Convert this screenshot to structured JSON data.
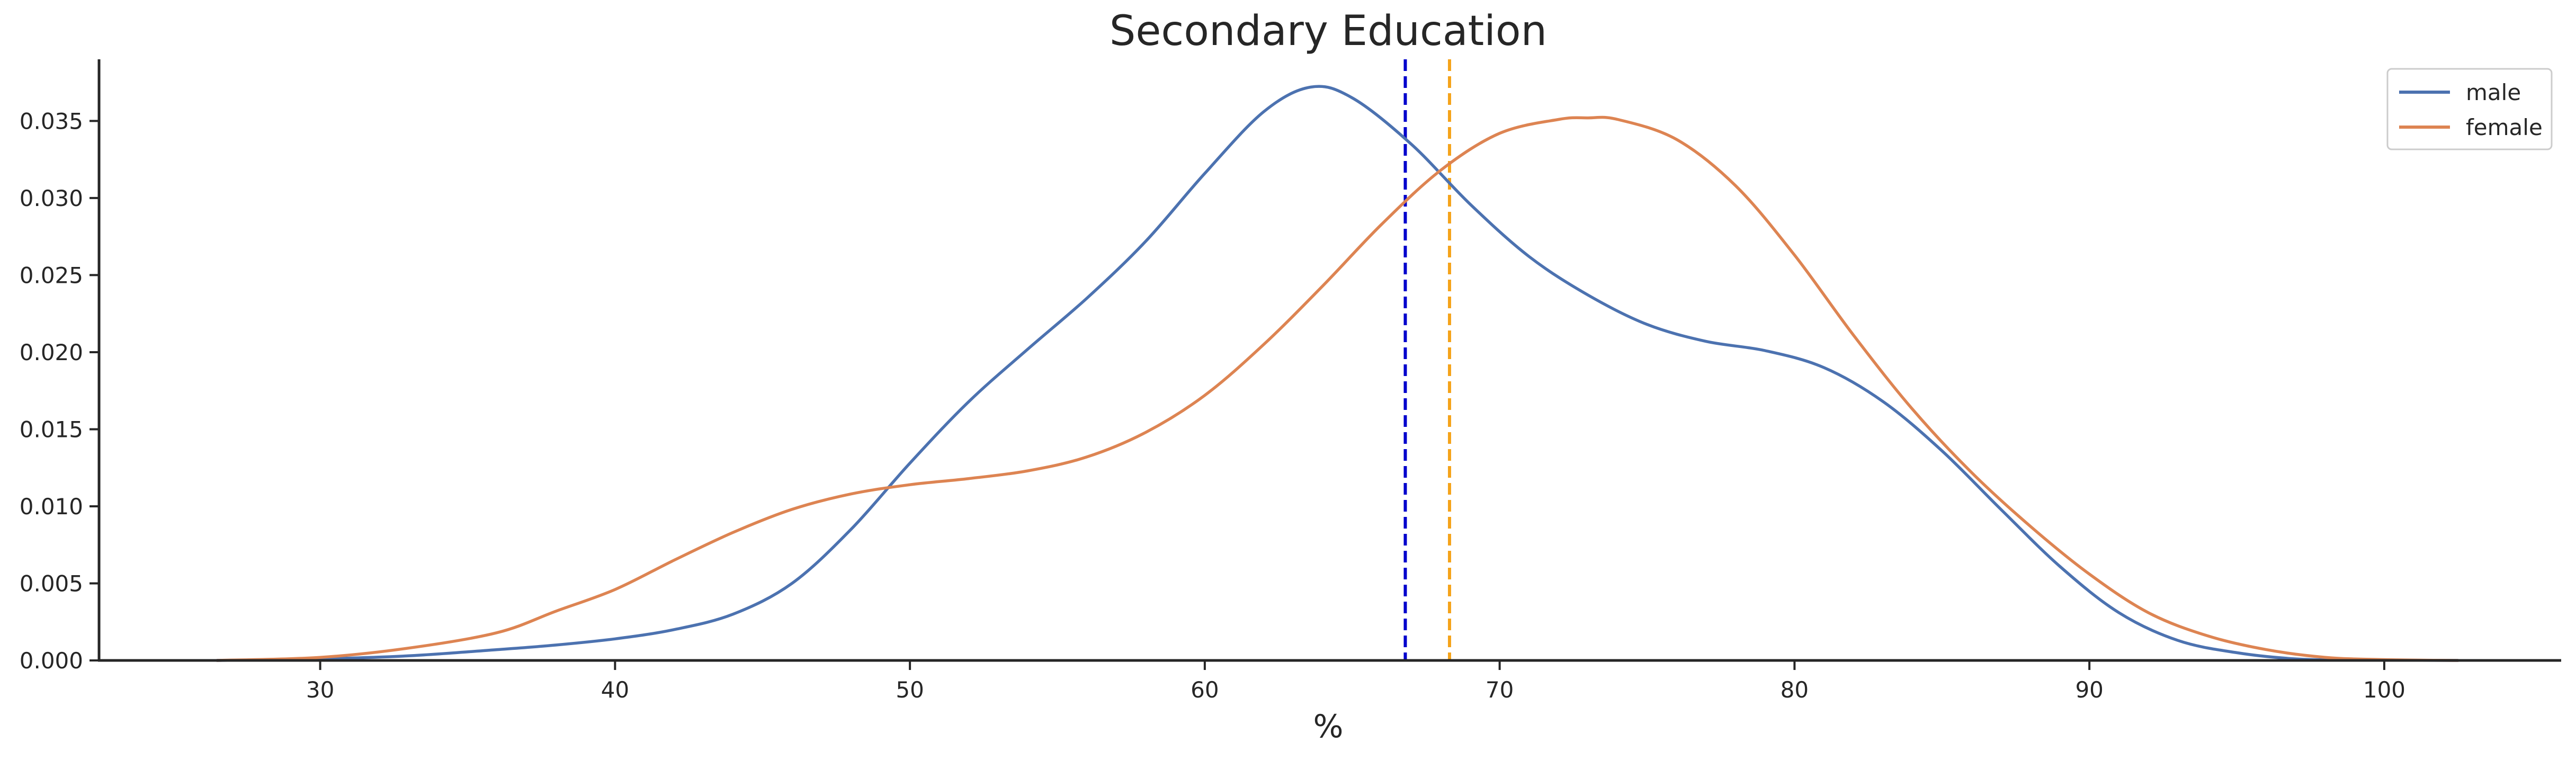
{
  "chart_data": {
    "type": "line",
    "title": "Secondary Education",
    "xlabel": "%",
    "ylabel": "",
    "xlim": [
      22.5,
      106
    ],
    "ylim": [
      0,
      0.039
    ],
    "xticks": [
      30,
      40,
      50,
      60,
      70,
      80,
      90,
      100
    ],
    "xtick_labels": [
      "30",
      "40",
      "50",
      "60",
      "70",
      "80",
      "90",
      "100"
    ],
    "yticks": [
      0.0,
      0.005,
      0.01,
      0.015,
      0.02,
      0.025,
      0.03,
      0.035
    ],
    "ytick_labels": [
      "0.000",
      "0.005",
      "0.010",
      "0.015",
      "0.020",
      "0.025",
      "0.030",
      "0.035"
    ],
    "grid": false,
    "legend_position": "top-right",
    "series": [
      {
        "name": "male",
        "color": "#4c72b0",
        "x": [
          26.5,
          30,
          33,
          36,
          38,
          40,
          42,
          44,
          46,
          48,
          50,
          52,
          54,
          56,
          58,
          60,
          62,
          63.6,
          65,
          67,
          69,
          71,
          73,
          75,
          77,
          79,
          81,
          83,
          85,
          87,
          89,
          91,
          93,
          95,
          97,
          99,
          102.5
        ],
        "y": [
          0.0,
          0.0001,
          0.0003,
          0.0007,
          0.001,
          0.0014,
          0.002,
          0.003,
          0.005,
          0.0085,
          0.0128,
          0.0168,
          0.0202,
          0.0235,
          0.0272,
          0.0316,
          0.0356,
          0.0372,
          0.0365,
          0.0335,
          0.0296,
          0.0262,
          0.0237,
          0.0218,
          0.0207,
          0.0201,
          0.019,
          0.0168,
          0.0136,
          0.0098,
          0.0061,
          0.0031,
          0.0013,
          0.0005,
          0.0001,
          3e-05,
          0.0
        ]
      },
      {
        "name": "female",
        "color": "#dd8452",
        "x": [
          26.5,
          30,
          33,
          36,
          38,
          40,
          42,
          44,
          46,
          48,
          50,
          52,
          54,
          56,
          58,
          60,
          62,
          64,
          66,
          68,
          70,
          72,
          73,
          74,
          76,
          78,
          80,
          82,
          84,
          86,
          88,
          90,
          92,
          94,
          96,
          98,
          100,
          102.5
        ],
        "y": [
          0.0,
          0.0002,
          0.0008,
          0.0018,
          0.0032,
          0.0046,
          0.0065,
          0.0083,
          0.0098,
          0.0108,
          0.0114,
          0.0118,
          0.0123,
          0.0132,
          0.0148,
          0.0172,
          0.0205,
          0.0243,
          0.0283,
          0.0318,
          0.0342,
          0.0351,
          0.0352,
          0.0351,
          0.0338,
          0.0308,
          0.0263,
          0.0211,
          0.0163,
          0.0122,
          0.0087,
          0.0056,
          0.0031,
          0.0016,
          0.0007,
          0.0002,
          5e-05,
          0.0
        ]
      }
    ],
    "reference_lines": [
      {
        "orientation": "vertical",
        "x": 66.8,
        "color": "#0000cc",
        "style": "dashed"
      },
      {
        "orientation": "vertical",
        "x": 68.3,
        "color": "#f5a31a",
        "style": "dashed"
      }
    ]
  }
}
